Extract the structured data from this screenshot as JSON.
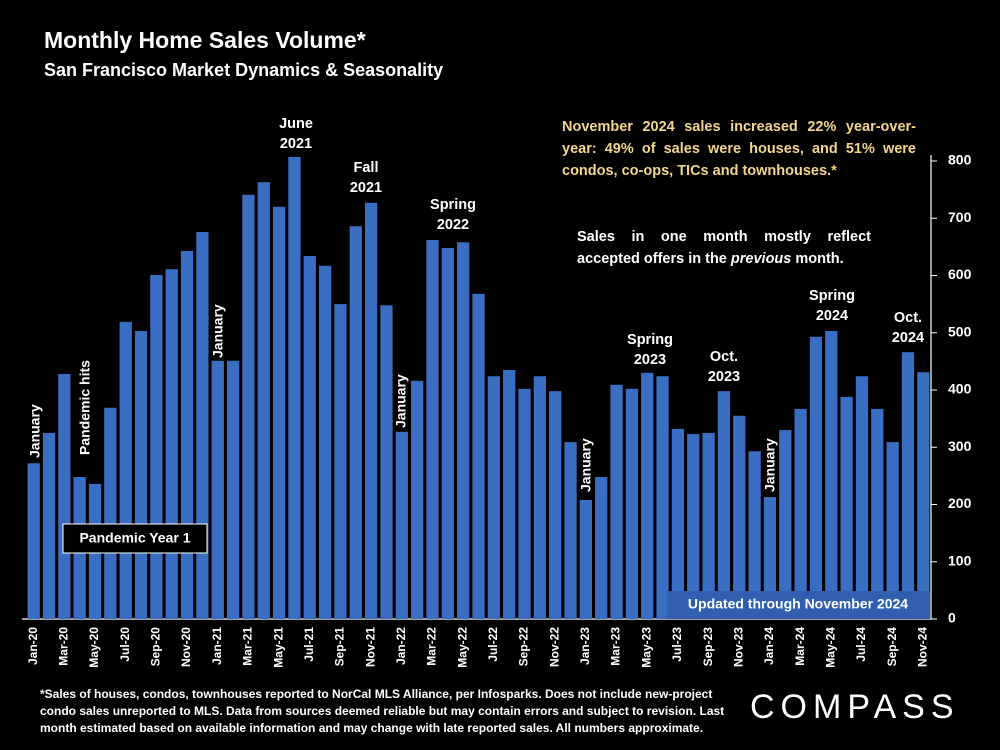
{
  "chart_data": {
    "type": "bar",
    "title": "Monthly Home Sales Volume*",
    "subtitle": "San Francisco Market Dynamics & Seasonality",
    "categories": [
      "Jan-20",
      null,
      "Mar-20",
      null,
      "May-20",
      null,
      "Jul-20",
      null,
      "Sep-20",
      null,
      "Nov-20",
      null,
      "Jan-21",
      null,
      "Mar-21",
      null,
      "May-21",
      null,
      "Jul-21",
      null,
      "Sep-21",
      null,
      "Nov-21",
      null,
      "Jan-22",
      null,
      "Mar-22",
      null,
      "May-22",
      null,
      "Jul-22",
      null,
      "Sep-22",
      null,
      "Nov-22",
      null,
      "Jan-23",
      null,
      "Mar-23",
      null,
      "May-23",
      null,
      "Jul-23",
      null,
      "Sep-23",
      null,
      "Nov-23",
      null,
      "Jan-24",
      null,
      "Mar-24",
      null,
      "May-24",
      null,
      "Jul-24",
      null,
      "Sep-24",
      null,
      "Nov-24"
    ],
    "values": [
      272,
      325,
      428,
      248,
      236,
      369,
      519,
      503,
      601,
      611,
      643,
      676,
      451,
      451,
      741,
      763,
      720,
      807,
      634,
      617,
      550,
      686,
      727,
      548,
      327,
      416,
      662,
      648,
      658,
      568,
      424,
      435,
      402,
      424,
      398,
      309,
      208,
      248,
      409,
      402,
      430,
      424,
      332,
      323,
      325,
      398,
      355,
      293,
      213,
      330,
      367,
      493,
      503,
      388,
      424,
      367,
      309,
      466,
      431
    ],
    "color": "#3a6ec2",
    "ylim": [
      0,
      800
    ],
    "yticks": [
      0,
      100,
      200,
      300,
      400,
      500,
      600,
      700,
      800
    ],
    "annotations": [
      [
        "January"
      ],
      [
        "Pandemic hits"
      ],
      [
        "January"
      ],
      [
        "June",
        "2021"
      ],
      [
        "Fall",
        "2021"
      ],
      [
        "January"
      ],
      [
        "Spring",
        "2022"
      ],
      [
        "January"
      ],
      [
        "Spring",
        "2023"
      ],
      [
        "Oct.",
        "2023"
      ],
      [
        "January"
      ],
      [
        "Spring",
        "2024"
      ],
      [
        "Oct.",
        "2024"
      ]
    ],
    "callouts": [
      "Pandemic Year 1",
      "Updated through November 2024"
    ],
    "note": "November 2024 sales increased 22% year-over-year: 49% of sales were houses, and 51% were condos, co-ops, TICs and townhouses.*",
    "note2": [
      "Sales in one month mostly reflect accepted offers in the",
      "previous",
      "month."
    ],
    "footnote": "*Sales of houses, condos, townhouses reported to NorCal MLS Alliance, per Infosparks. Does not include new-project condo sales unreported to MLS. Data from sources deemed reliable but may contain errors and subject to revision. Last month estimated based on available information and may change with late reported sales. All numbers approximate.",
    "logo": "COMPASS"
  }
}
